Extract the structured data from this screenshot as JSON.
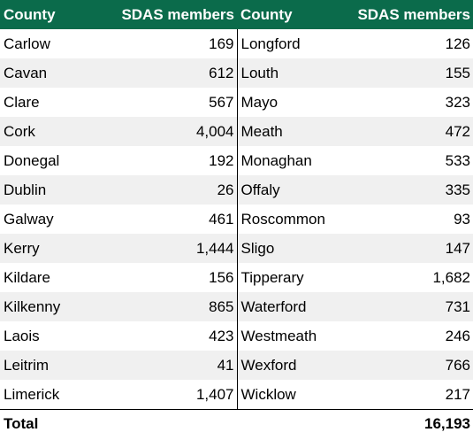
{
  "headers": {
    "county_left": "County",
    "members_left": "SDAS members",
    "county_right": "County",
    "members_right": "SDAS members"
  },
  "rows": [
    {
      "left_county": "Carlow",
      "left_value": "169",
      "right_county": "Longford",
      "right_value": "126"
    },
    {
      "left_county": "Cavan",
      "left_value": "612",
      "right_county": "Louth",
      "right_value": "155"
    },
    {
      "left_county": "Clare",
      "left_value": "567",
      "right_county": "Mayo",
      "right_value": "323"
    },
    {
      "left_county": "Cork",
      "left_value": "4,004",
      "right_county": "Meath",
      "right_value": "472"
    },
    {
      "left_county": "Donegal",
      "left_value": "192",
      "right_county": "Monaghan",
      "right_value": "533"
    },
    {
      "left_county": "Dublin",
      "left_value": "26",
      "right_county": "Offaly",
      "right_value": "335"
    },
    {
      "left_county": "Galway",
      "left_value": "461",
      "right_county": "Roscommon",
      "right_value": "93"
    },
    {
      "left_county": "Kerry",
      "left_value": "1,444",
      "right_county": "Sligo",
      "right_value": "147"
    },
    {
      "left_county": "Kildare",
      "left_value": "156",
      "right_county": "Tipperary",
      "right_value": "1,682"
    },
    {
      "left_county": "Kilkenny",
      "left_value": "865",
      "right_county": "Waterford",
      "right_value": "731"
    },
    {
      "left_county": "Laois",
      "left_value": "423",
      "right_county": "Westmeath",
      "right_value": "246"
    },
    {
      "left_county": "Leitrim",
      "left_value": "41",
      "right_county": "Wexford",
      "right_value": "766"
    },
    {
      "left_county": "Limerick",
      "left_value": "1,407",
      "right_county": "Wicklow",
      "right_value": "217"
    }
  ],
  "total": {
    "label": "Total",
    "value": "16,193"
  },
  "colors": {
    "header_bg": "#0b6b4b",
    "header_text": "#ffffff",
    "stripe": "#f0f0f0"
  }
}
